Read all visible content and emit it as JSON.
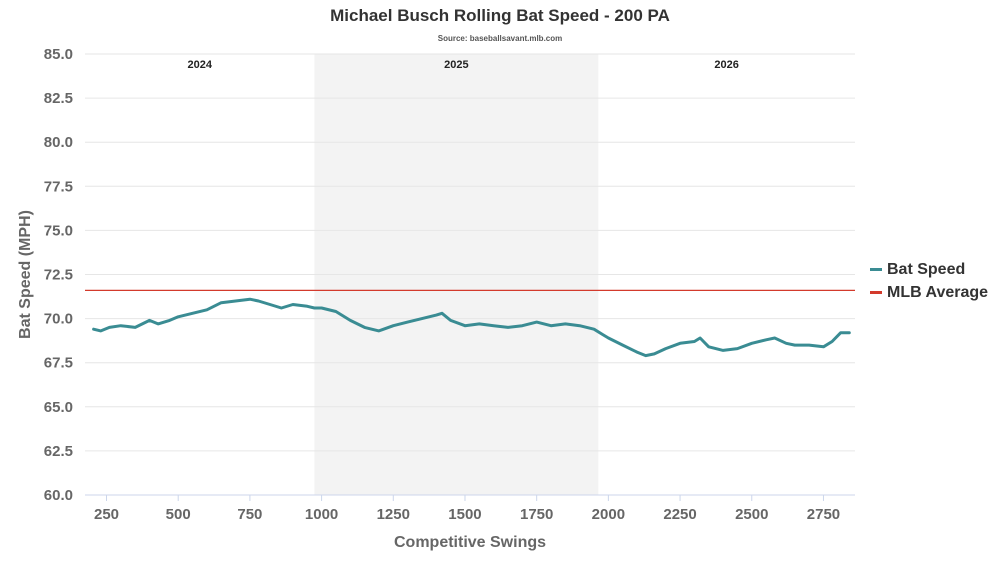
{
  "colors": {
    "bat_speed": "#3a8c93",
    "mlb_average": "#d33a2c",
    "band": "#f3f3f3",
    "grid": "#e6e6e6"
  },
  "chart_data": {
    "type": "line",
    "title": "Michael Busch Rolling Bat Speed - 200 PA",
    "subtitle": "Source: baseballsavant.mlb.com",
    "xlabel": "Competitive Swings",
    "ylabel": "Bat Speed (MPH)",
    "xlim": [
      175,
      2860
    ],
    "ylim": [
      60,
      85
    ],
    "xticks": [
      250,
      500,
      750,
      1000,
      1250,
      1500,
      1750,
      2000,
      2250,
      2500,
      2750
    ],
    "yticks": [
      60.0,
      62.5,
      65.0,
      67.5,
      70.0,
      72.5,
      75.0,
      77.5,
      80.0,
      82.5,
      85.0
    ],
    "grid": true,
    "legend_position": "right",
    "season_bands": [
      {
        "label": "2024",
        "start": 175,
        "end": 975,
        "shaded": false
      },
      {
        "label": "2025",
        "start": 975,
        "end": 1965,
        "shaded": true
      },
      {
        "label": "2026",
        "start": 1965,
        "end": 2860,
        "shaded": false
      }
    ],
    "reference_lines": [
      {
        "name": "MLB Average",
        "y": 71.6
      }
    ],
    "series": [
      {
        "name": "Bat Speed",
        "x": [
          205,
          230,
          260,
          300,
          350,
          400,
          430,
          470,
          500,
          550,
          600,
          650,
          700,
          750,
          780,
          820,
          860,
          900,
          950,
          975,
          1000,
          1050,
          1100,
          1150,
          1200,
          1250,
          1300,
          1350,
          1400,
          1420,
          1450,
          1500,
          1550,
          1600,
          1650,
          1700,
          1750,
          1800,
          1850,
          1900,
          1950,
          1980,
          2000,
          2050,
          2100,
          2130,
          2160,
          2200,
          2250,
          2300,
          2320,
          2350,
          2400,
          2450,
          2500,
          2550,
          2580,
          2620,
          2650,
          2700,
          2750,
          2780,
          2810,
          2840
        ],
        "y": [
          69.4,
          69.3,
          69.5,
          69.6,
          69.5,
          69.9,
          69.7,
          69.9,
          70.1,
          70.3,
          70.5,
          70.9,
          71.0,
          71.1,
          71.0,
          70.8,
          70.6,
          70.8,
          70.7,
          70.6,
          70.6,
          70.4,
          69.9,
          69.5,
          69.3,
          69.6,
          69.8,
          70.0,
          70.2,
          70.3,
          69.9,
          69.6,
          69.7,
          69.6,
          69.5,
          69.6,
          69.8,
          69.6,
          69.7,
          69.6,
          69.4,
          69.1,
          68.9,
          68.5,
          68.1,
          67.9,
          68.0,
          68.3,
          68.6,
          68.7,
          68.9,
          68.4,
          68.2,
          68.3,
          68.6,
          68.8,
          68.9,
          68.6,
          68.5,
          68.5,
          68.4,
          68.7,
          69.2,
          69.2
        ]
      }
    ]
  }
}
